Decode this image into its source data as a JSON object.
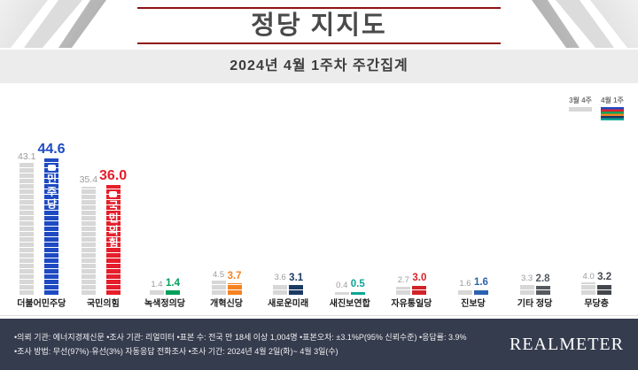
{
  "header": {
    "title": "정당 지지도",
    "subtitle": "2024년 4월 1주차 주간집계"
  },
  "chart_data": {
    "type": "bar",
    "title": "정당 지지도",
    "subtitle": "2024년 4월 1주차 주간집계",
    "categories": [
      "더불어민주당",
      "국민의힘",
      "녹색정의당",
      "개혁신당",
      "새로운미래",
      "새진보연합",
      "자유통일당",
      "진보당",
      "기타 정당",
      "무당층"
    ],
    "series": [
      {
        "name": "3월 4주",
        "values": [
          43.1,
          35.4,
          1.4,
          4.5,
          3.6,
          0.4,
          2.7,
          1.6,
          3.3,
          4.0
        ]
      },
      {
        "name": "4월 1주",
        "values": [
          44.6,
          36.0,
          1.4,
          3.7,
          3.1,
          0.5,
          3.0,
          1.6,
          2.8,
          3.2
        ]
      }
    ],
    "bar_colors": [
      "#1e4bc3",
      "#e61e2b",
      "#00a05a",
      "#f58220",
      "#1b3a63",
      "#0aa596",
      "#d2232a",
      "#2b62ae",
      "#555a60",
      "#43474d"
    ],
    "prev_color": "#d7d7d7",
    "ylabel": "",
    "xlabel": "",
    "ylim": [
      0,
      50
    ],
    "legend_position": "top-right",
    "grid": false
  },
  "inner_labels": [
    {
      "index": 0,
      "text": "민주당",
      "symbol": true
    },
    {
      "index": 1,
      "text": "국민의힘",
      "symbol": true
    }
  ],
  "footer": {
    "line1": "•의뢰 기관: 에너지경제신문 •조사 기관: 리얼미터 •표본 수: 전국 만 18세 이상 1,004명 •표본오차: ±3.1%P(95% 신뢰수준) •응답률: 3.9%",
    "line2": "•조사 방법: 무선(97%)·유선(3%) 자동응답 전화조사 •조사 기간: 2024년 4월 2일(화)~ 4월 3일(수)",
    "logo": "REALMETER"
  }
}
